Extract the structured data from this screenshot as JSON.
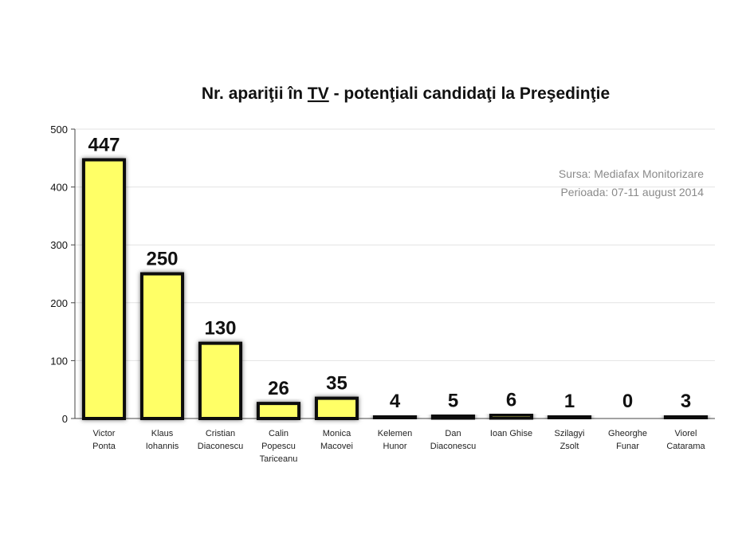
{
  "chart_data": {
    "type": "bar",
    "title_parts": [
      "Nr. apariţii în ",
      "TV",
      " - potenţiali candidaţi la Preşedinţie"
    ],
    "source_lines": [
      "Sursa: Mediafax Monitorizare",
      "Perioada: 07-11 august 2014"
    ],
    "categories": [
      [
        "Victor",
        "Ponta"
      ],
      [
        "Klaus",
        "Iohannis"
      ],
      [
        "Cristian",
        "Diaconescu"
      ],
      [
        "Calin",
        "Popescu",
        "Tariceanu"
      ],
      [
        "Monica",
        "Macovei"
      ],
      [
        "Kelemen",
        "Hunor"
      ],
      [
        "Dan",
        "Diaconescu"
      ],
      [
        "Ioan Ghise"
      ],
      [
        "Szilagyi",
        "Zsolt"
      ],
      [
        "Gheorghe",
        "Funar"
      ],
      [
        "Viorel",
        "Catarama"
      ]
    ],
    "values": [
      447,
      250,
      130,
      26,
      35,
      4,
      5,
      6,
      1,
      0,
      3
    ],
    "ylim": [
      0,
      500
    ],
    "yticks": [
      "0",
      "100",
      "200",
      "300",
      "400",
      "500"
    ],
    "grid": true,
    "colors": {
      "bar_fill": "#ffff66",
      "bar_stroke": "#111111",
      "grid": "#e3e3e3",
      "axis": "#444444"
    }
  }
}
